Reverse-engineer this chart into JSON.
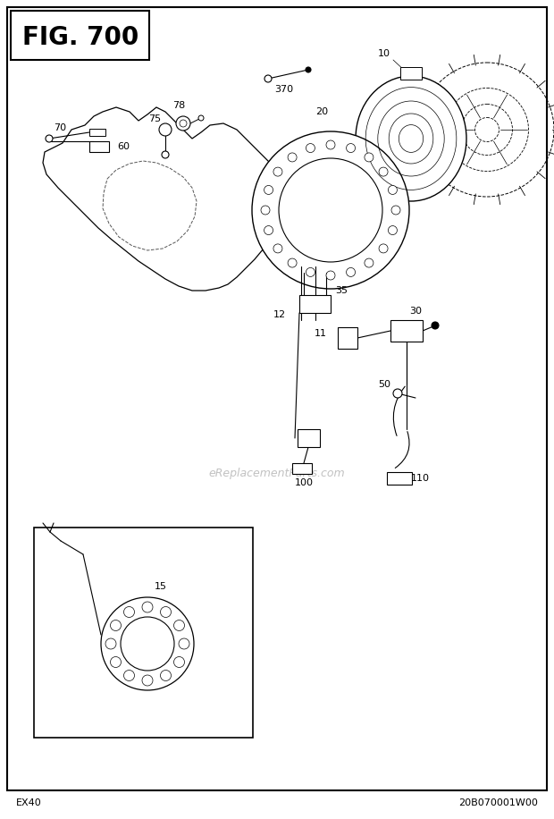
{
  "title": "FIG. 700",
  "bottom_left": "EX40",
  "bottom_right": "20B070001W00",
  "watermark": "eReplacementParts.com",
  "bg_color": "#ffffff",
  "figwidth": 6.2,
  "figheight": 9.16,
  "dpi": 100
}
